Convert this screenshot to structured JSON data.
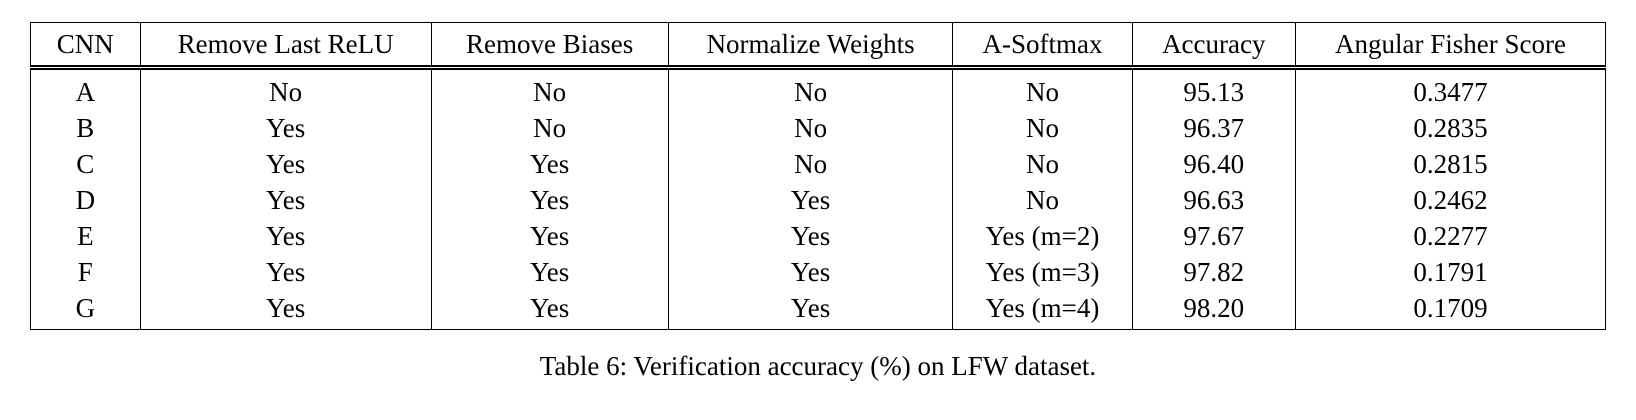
{
  "table": {
    "headers": [
      "CNN",
      "Remove Last ReLU",
      "Remove Biases",
      "Normalize Weights",
      "A-Softmax",
      "Accuracy",
      "Angular Fisher Score"
    ],
    "rows": [
      [
        "A",
        "No",
        "No",
        "No",
        "No",
        "95.13",
        "0.3477"
      ],
      [
        "B",
        "Yes",
        "No",
        "No",
        "No",
        "96.37",
        "0.2835"
      ],
      [
        "C",
        "Yes",
        "Yes",
        "No",
        "No",
        "96.40",
        "0.2815"
      ],
      [
        "D",
        "Yes",
        "Yes",
        "Yes",
        "No",
        "96.63",
        "0.2462"
      ],
      [
        "E",
        "Yes",
        "Yes",
        "Yes",
        "Yes (m=2)",
        "97.67",
        "0.2277"
      ],
      [
        "F",
        "Yes",
        "Yes",
        "Yes",
        "Yes (m=3)",
        "97.82",
        "0.1791"
      ],
      [
        "G",
        "Yes",
        "Yes",
        "Yes",
        "Yes (m=4)",
        "98.20",
        "0.1709"
      ]
    ]
  },
  "caption": "Table 6: Verification accuracy (%) on LFW dataset."
}
